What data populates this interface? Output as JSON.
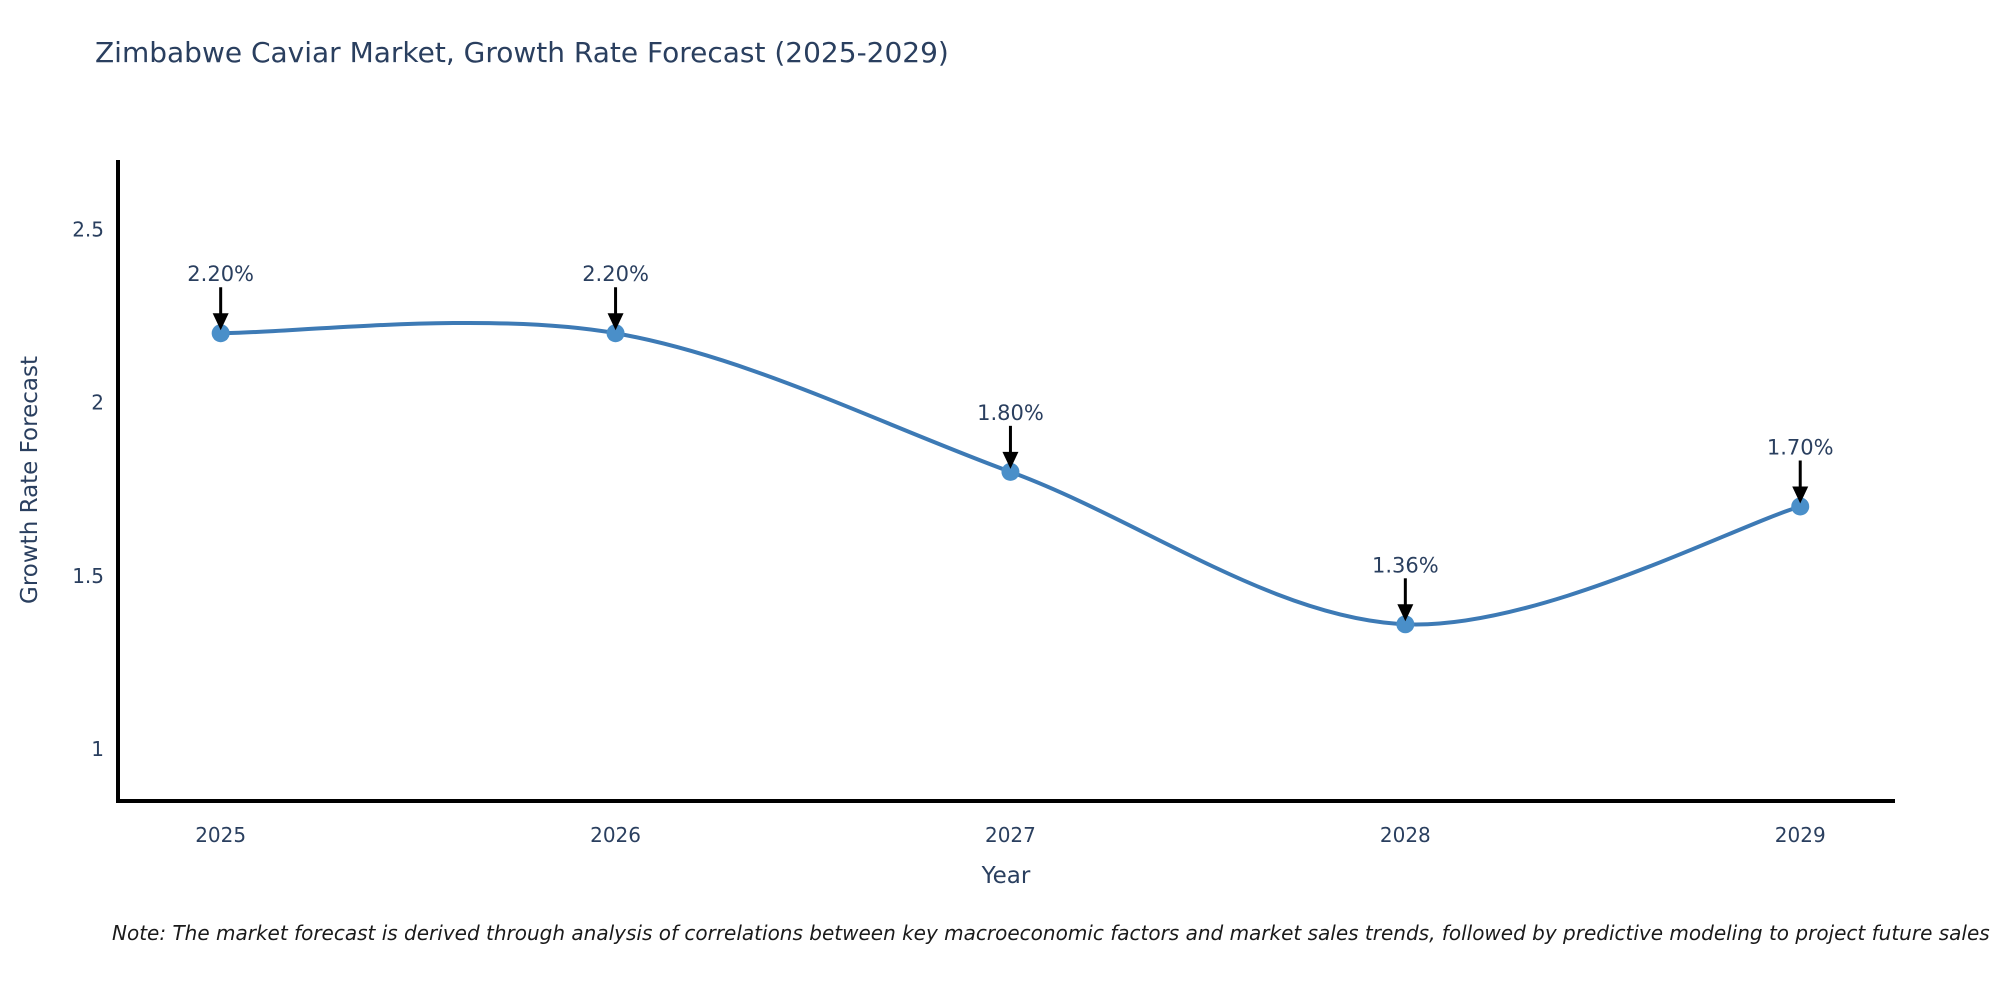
{
  "chart_data": {
    "type": "line",
    "title": "Zimbabwe Caviar Market, Growth Rate Forecast (2025-2029)",
    "categories": [
      "2025",
      "2026",
      "2027",
      "2028",
      "2029"
    ],
    "x": [
      2025,
      2026,
      2027,
      2028,
      2029
    ],
    "values": [
      2.2,
      2.2,
      1.8,
      1.36,
      1.7
    ],
    "point_labels": [
      "2.20%",
      "2.20%",
      "1.80%",
      "1.36%",
      "1.70%"
    ],
    "xlabel": "Year",
    "ylabel": "Growth Rate Forecast",
    "yticks": [
      1,
      1.5,
      2,
      2.5
    ],
    "ytick_labels": [
      "1",
      "1.5",
      "2",
      "2.5"
    ],
    "ylim": [
      0.85,
      2.7
    ],
    "xlim": [
      2024.74,
      2029.24
    ],
    "grid": false,
    "legend": "none",
    "curve": "spline",
    "colors": {
      "line": "#3d7ab5",
      "marker": "#4a8fc9",
      "axis": "#000000",
      "text": "#2a3f5f",
      "annotation_text": "#2a3f5f",
      "arrow": "#000000",
      "note_text": "#1a1a1a",
      "background": "#ffffff"
    }
  },
  "footer": {
    "note": "Note: The market forecast is derived through analysis of correlations between key macroeconomic factors and market sales trends, followed by predictive modeling to project future sales"
  }
}
